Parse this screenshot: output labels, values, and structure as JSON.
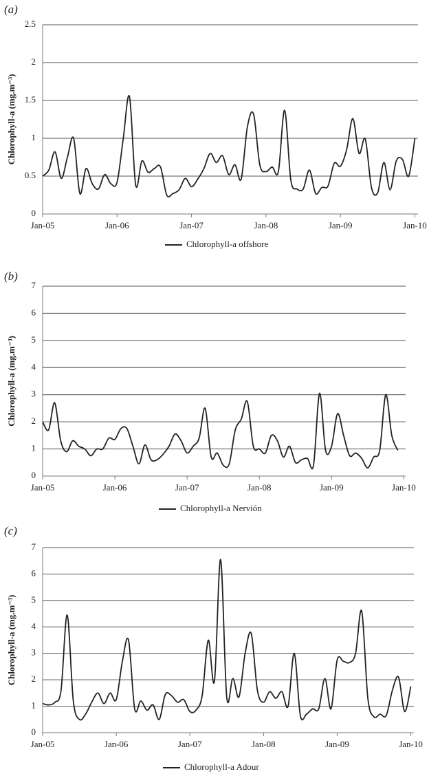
{
  "chart_data": [
    {
      "type": "line",
      "panel_label": "(a)",
      "ylabel": "Chlorophyll-a  (mg.m⁻³)",
      "ylim": [
        0,
        2.5
      ],
      "yticks": [
        0,
        0.5,
        1,
        1.5,
        2,
        2.5
      ],
      "grid": true,
      "xlim": [
        0,
        60.5
      ],
      "xticks": [
        {
          "value": 0,
          "label": "Jan-05"
        },
        {
          "value": 12,
          "label": "Jan-06"
        },
        {
          "value": 24,
          "label": "Jan-07"
        },
        {
          "value": 36,
          "label": "Jan-08"
        },
        {
          "value": 48,
          "label": "Jan-09"
        },
        {
          "value": 60,
          "label": "Jan-10"
        }
      ],
      "x": [
        0,
        1,
        2,
        3,
        4,
        5,
        6,
        7,
        8,
        9,
        10,
        11,
        12,
        13,
        14,
        15,
        16,
        17,
        18,
        19,
        20,
        21,
        22,
        23,
        24,
        25,
        26,
        27,
        28,
        29,
        30,
        31,
        32,
        33,
        34,
        35,
        36,
        37,
        38,
        39,
        40,
        41,
        42,
        43,
        44,
        45,
        46,
        47,
        48,
        49,
        50,
        51,
        52,
        53,
        54,
        55,
        56,
        57,
        58,
        59,
        60
      ],
      "series": [
        {
          "name": "Chlorophyll-a offshore",
          "color": "#222222",
          "values": [
            0.5,
            0.58,
            0.82,
            0.47,
            0.75,
            1.0,
            0.27,
            0.6,
            0.4,
            0.33,
            0.52,
            0.4,
            0.42,
            1.0,
            1.55,
            0.38,
            0.7,
            0.55,
            0.6,
            0.62,
            0.25,
            0.27,
            0.32,
            0.47,
            0.36,
            0.46,
            0.6,
            0.8,
            0.68,
            0.77,
            0.52,
            0.65,
            0.46,
            1.15,
            1.32,
            0.65,
            0.56,
            0.62,
            0.56,
            1.37,
            0.45,
            0.33,
            0.33,
            0.58,
            0.27,
            0.35,
            0.37,
            0.67,
            0.63,
            0.85,
            1.26,
            0.8,
            0.99,
            0.35,
            0.28,
            0.68,
            0.32,
            0.7,
            0.72,
            0.5,
            1.0
          ]
        }
      ]
    },
    {
      "type": "line",
      "panel_label": "(b)",
      "ylabel": "Chlorophyll-a  (mg.m⁻³)",
      "ylim": [
        0,
        7
      ],
      "yticks": [
        0,
        1,
        2,
        3,
        4,
        5,
        6,
        7
      ],
      "grid": true,
      "xlim": [
        0,
        60.3
      ],
      "xticks": [
        {
          "value": 0,
          "label": "Jan-05"
        },
        {
          "value": 12,
          "label": "Jan-06"
        },
        {
          "value": 24,
          "label": "Jan-07"
        },
        {
          "value": 36,
          "label": "Jan-08"
        },
        {
          "value": 48,
          "label": "Jan-09"
        },
        {
          "value": 60,
          "label": "Jan-10"
        }
      ],
      "x": [
        0,
        1,
        2,
        3,
        4,
        5,
        6,
        7,
        8,
        9,
        10,
        11,
        12,
        13,
        14,
        15,
        16,
        17,
        18,
        19,
        20,
        21,
        22,
        23,
        24,
        25,
        26,
        27,
        28,
        29,
        30,
        31,
        32,
        33,
        34,
        35,
        36,
        37,
        38,
        39,
        40,
        41,
        42,
        43,
        44,
        45,
        46,
        47,
        48,
        49,
        50,
        51,
        52,
        53,
        54,
        55,
        56,
        57,
        58,
        59
      ],
      "series": [
        {
          "name": "Chlorophyll-a Nervión",
          "color": "#222222",
          "values": [
            2.0,
            1.7,
            2.7,
            1.3,
            0.9,
            1.3,
            1.1,
            1.0,
            0.75,
            1.0,
            1.0,
            1.4,
            1.35,
            1.75,
            1.75,
            1.1,
            0.45,
            1.15,
            0.6,
            0.6,
            0.8,
            1.1,
            1.55,
            1.3,
            0.85,
            1.1,
            1.4,
            2.5,
            0.7,
            0.85,
            0.4,
            0.45,
            1.7,
            2.1,
            2.75,
            1.1,
            1.0,
            0.85,
            1.5,
            1.3,
            0.7,
            1.1,
            0.5,
            0.6,
            0.65,
            0.4,
            3.05,
            0.95,
            1.1,
            2.3,
            1.5,
            0.75,
            0.85,
            0.65,
            0.3,
            0.7,
            0.95,
            3.0,
            1.5,
            0.95
          ]
        }
      ]
    },
    {
      "type": "line",
      "panel_label": "(c)",
      "ylabel": "Chlorophyll-a  (mg.m⁻³)",
      "ylim": [
        0,
        7
      ],
      "yticks": [
        0,
        1,
        2,
        3,
        4,
        5,
        6,
        7
      ],
      "grid": true,
      "xlim": [
        0,
        60.5
      ],
      "xticks": [
        {
          "value": 0,
          "label": "Jan-05"
        },
        {
          "value": 12,
          "label": "Jan-06"
        },
        {
          "value": 24,
          "label": "Jan-07"
        },
        {
          "value": 36,
          "label": "Jan-08"
        },
        {
          "value": 48,
          "label": "Jan-09"
        },
        {
          "value": 60,
          "label": "Jan-10"
        }
      ],
      "x": [
        0,
        1,
        2,
        3,
        4,
        5,
        6,
        7,
        8,
        9,
        10,
        11,
        12,
        13,
        14,
        15,
        16,
        17,
        18,
        19,
        20,
        21,
        22,
        23,
        24,
        25,
        26,
        27,
        28,
        29,
        30,
        31,
        32,
        33,
        34,
        35,
        36,
        37,
        38,
        39,
        40,
        41,
        42,
        43,
        44,
        45,
        46,
        47,
        48,
        49,
        50,
        51,
        52,
        53,
        54,
        55,
        56,
        57,
        58,
        59,
        60
      ],
      "series": [
        {
          "name": "Chlorophyll-a Adour",
          "color": "#222222",
          "values": [
            1.1,
            1.05,
            1.15,
            1.6,
            4.45,
            1.2,
            0.5,
            0.7,
            1.15,
            1.5,
            1.1,
            1.5,
            1.25,
            2.7,
            3.5,
            0.9,
            1.2,
            0.85,
            1.05,
            0.5,
            1.45,
            1.4,
            1.15,
            1.25,
            0.8,
            0.85,
            1.4,
            3.5,
            1.95,
            6.55,
            1.35,
            2.05,
            1.35,
            3.0,
            3.75,
            1.6,
            1.15,
            1.55,
            1.3,
            1.55,
            1.0,
            3.0,
            0.65,
            0.7,
            0.9,
            0.9,
            2.05,
            0.9,
            2.75,
            2.7,
            2.65,
            3.0,
            4.6,
            1.3,
            0.6,
            0.7,
            0.65,
            1.6,
            2.1,
            0.8,
            1.75
          ]
        }
      ]
    }
  ]
}
